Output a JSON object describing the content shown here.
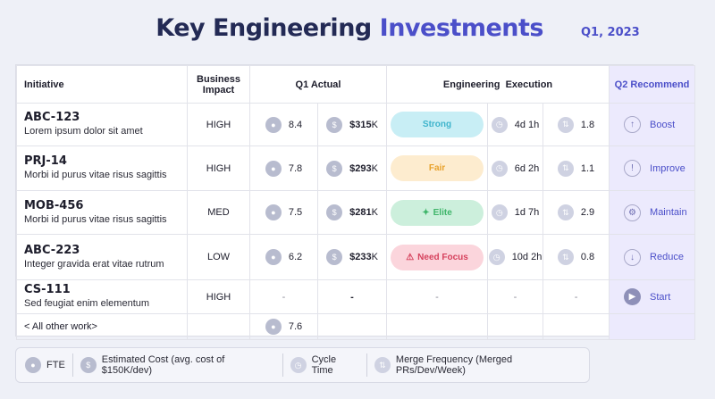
{
  "header": {
    "title_main": "Key Engineering",
    "title_accent": "Investments",
    "period": "Q1, 2023"
  },
  "table": {
    "headers": {
      "initiative": "Initiative",
      "impact": "Business Impact",
      "q1_actual": "Q1 Actual",
      "execution": "Engineering  Execution",
      "q2": "Q2 Recommend"
    },
    "rows": [
      {
        "code": "ABC-123",
        "desc": "Lorem ipsum dolor sit amet",
        "impact": "HIGH",
        "fte": "8.4",
        "cost": "$315",
        "cost_unit": "K",
        "status": "Strong",
        "cycle": "4d 1h",
        "merge": "1.8",
        "rec": "Boost",
        "rec_icon": "arrow-up-icon"
      },
      {
        "code": "PRJ-14",
        "desc": "Morbi id purus vitae risus sagittis",
        "impact": "HIGH",
        "fte": "7.8",
        "cost": "$293",
        "cost_unit": "K",
        "status": "Fair",
        "cycle": "6d 2h",
        "merge": "1.1",
        "rec": "Improve",
        "rec_icon": "exclamation-icon"
      },
      {
        "code": "MOB-456",
        "desc": "Morbi id purus vitae risus sagittis",
        "impact": "MED",
        "fte": "7.5",
        "cost": "$281",
        "cost_unit": "K",
        "status": "Elite",
        "cycle": "1d 7h",
        "merge": "2.9",
        "rec": "Maintain",
        "rec_icon": "gear-icon"
      },
      {
        "code": "ABC-223",
        "desc": "Integer gravida erat vitae rutrum",
        "impact": "LOW",
        "fte": "6.2",
        "cost": "$233",
        "cost_unit": "K",
        "status": "Need Focus",
        "cycle": "10d 2h",
        "merge": "0.8",
        "rec": "Reduce",
        "rec_icon": "arrow-down-icon"
      },
      {
        "code": "CS-111",
        "desc": "Sed feugiat enim elementum",
        "impact": "HIGH",
        "fte": "-",
        "cost": "-",
        "status": "-",
        "cycle": "-",
        "merge": "-",
        "rec": "Start",
        "rec_icon": "play-icon"
      }
    ],
    "other_row": {
      "label": "< All other work>",
      "fte": "7.6"
    }
  },
  "legend": {
    "fte": "FTE",
    "cost": "Estimated Cost (avg. cost of $150K/dev)",
    "cycle": "Cycle Time",
    "merge": "Merge Frequency (Merged PRs/Dev/Week)"
  },
  "colors": {
    "accent": "#4b4fc9",
    "title": "#232a55",
    "strong": "#3fb4cc",
    "fair": "#e8a22c",
    "elite": "#3fb56a",
    "need_focus": "#d6425d",
    "q2_column": "#eceafd"
  }
}
